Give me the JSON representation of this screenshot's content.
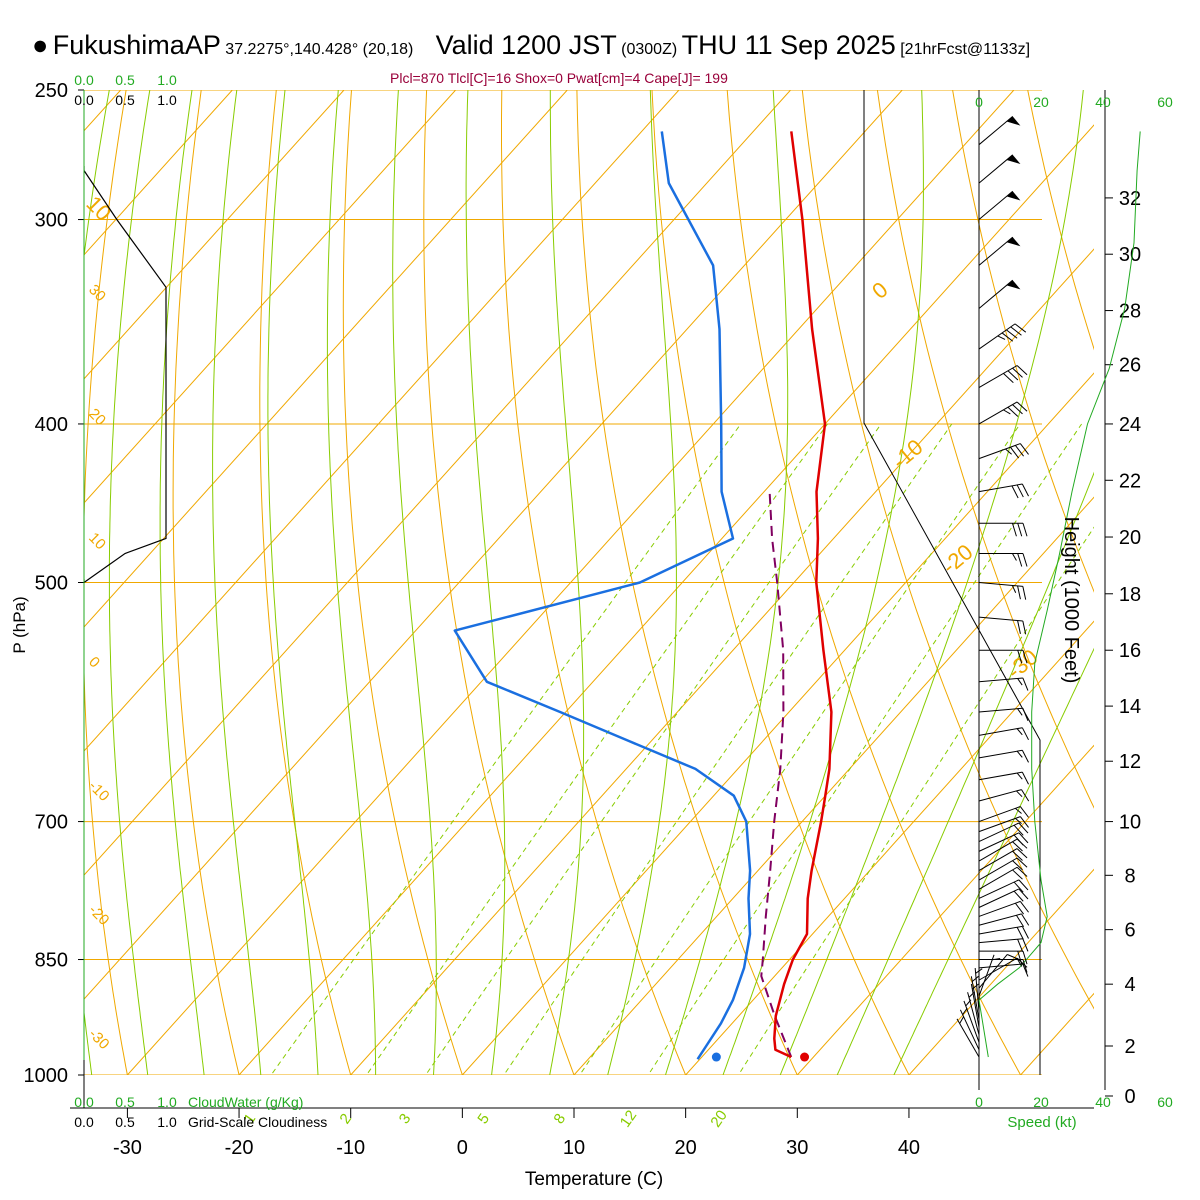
{
  "header": {
    "station": "FukushimaAP",
    "coords": "37.2275°,140.428° (20,18)",
    "valid_text": "Valid 1200 JST",
    "utc_text": "(0300Z)",
    "date_text": "THU 11 Sep 2025",
    "forecast_text": "[21hrFcst@1133z]",
    "params_text": "Plcl=870 Tlcl[C]=16 Shox=0 Pwat[cm]=4 Cape[J]= 199"
  },
  "colors": {
    "temperature": "#e00000",
    "dewpoint": "#1a6fe0",
    "parcel": "#800060",
    "isotherm": "#f0a800",
    "dry_adiabat": "#f0a800",
    "moist_adiabat": "#88cc00",
    "mixing_ratio": "#88cc00",
    "wind_speed": "#22aa22",
    "axis_green": "#22aa22"
  },
  "chart_data": {
    "type": "skew-t",
    "title": "FukushimaAP Valid 1200 JST (0300Z) THU 11 Sep 2025",
    "xlabel": "Temperature (C)",
    "ylabel": "P (hPa)",
    "y2label": "Height (1000 Feet)",
    "pressure_range": [
      1000,
      250
    ],
    "temperature_range_at_1000": [
      -35,
      47
    ],
    "temp_ticks": [
      -30,
      -20,
      -10,
      0,
      10,
      20,
      30,
      40
    ],
    "pressure_ticks": [
      1000,
      850,
      700,
      500,
      400,
      300,
      250
    ],
    "height_ticks": [
      0,
      2,
      4,
      6,
      8,
      10,
      12,
      14,
      16,
      18,
      20,
      22,
      24,
      26,
      28,
      30,
      32
    ],
    "height_pressure_pairs": [
      [
        0,
        1030
      ],
      [
        2,
        960
      ],
      [
        4,
        880
      ],
      [
        6,
        815
      ],
      [
        8,
        755
      ],
      [
        10,
        700
      ],
      [
        12,
        643
      ],
      [
        14,
        595
      ],
      [
        16,
        550
      ],
      [
        18,
        508
      ],
      [
        20,
        469
      ],
      [
        22,
        433
      ],
      [
        24,
        400
      ],
      [
        26,
        368
      ],
      [
        28,
        341
      ],
      [
        30,
        315
      ],
      [
        32,
        291
      ]
    ],
    "isotherm_labels": [
      -30,
      -20,
      -10,
      0,
      10,
      20,
      30
    ],
    "dry_adiabat_labels": [
      10,
      0,
      -10,
      -20,
      -30
    ],
    "mixing_ratio_labels": [
      "1",
      "2",
      "3",
      "5",
      "8",
      "12",
      "20"
    ],
    "mixing_ratio_values": [
      1,
      2,
      3,
      5,
      8,
      12,
      20
    ],
    "temperature_profile": [
      {
        "p": 975,
        "t": 28.0
      },
      {
        "p": 965,
        "t": 26.0
      },
      {
        "p": 950,
        "t": 25.0
      },
      {
        "p": 920,
        "t": 23.3
      },
      {
        "p": 880,
        "t": 21.5
      },
      {
        "p": 860,
        "t": 20.7
      },
      {
        "p": 850,
        "t": 20.3
      },
      {
        "p": 820,
        "t": 19.5
      },
      {
        "p": 780,
        "t": 16.7
      },
      {
        "p": 750,
        "t": 14.8
      },
      {
        "p": 700,
        "t": 11.7
      },
      {
        "p": 675,
        "t": 10.0
      },
      {
        "p": 650,
        "t": 8.2
      },
      {
        "p": 600,
        "t": 3.8
      },
      {
        "p": 550,
        "t": -1.9
      },
      {
        "p": 500,
        "t": -8.0
      },
      {
        "p": 470,
        "t": -11.4
      },
      {
        "p": 440,
        "t": -15.3
      },
      {
        "p": 400,
        "t": -20.0
      },
      {
        "p": 350,
        "t": -28.8
      },
      {
        "p": 300,
        "t": -38.5
      },
      {
        "p": 265,
        "t": -46.6
      }
    ],
    "dewpoint_profile": [
      {
        "p": 978,
        "t": 19.8
      },
      {
        "p": 960,
        "t": 19.5
      },
      {
        "p": 930,
        "t": 19.0
      },
      {
        "p": 900,
        "t": 18.2
      },
      {
        "p": 860,
        "t": 16.6
      },
      {
        "p": 820,
        "t": 14.4
      },
      {
        "p": 780,
        "t": 11.4
      },
      {
        "p": 750,
        "t": 9.3
      },
      {
        "p": 700,
        "t": 5.0
      },
      {
        "p": 675,
        "t": 1.8
      },
      {
        "p": 650,
        "t": -3.8
      },
      {
        "p": 625,
        "t": -12.0
      },
      {
        "p": 600,
        "t": -20.5
      },
      {
        "p": 575,
        "t": -29.5
      },
      {
        "p": 535,
        "t": -36.5
      },
      {
        "p": 500,
        "t": -23.8
      },
      {
        "p": 470,
        "t": -19.0
      },
      {
        "p": 440,
        "t": -23.8
      },
      {
        "p": 400,
        "t": -29.3
      },
      {
        "p": 350,
        "t": -37.1
      },
      {
        "p": 320,
        "t": -42.8
      },
      {
        "p": 285,
        "t": -53.4
      },
      {
        "p": 265,
        "t": -58.2
      }
    ],
    "parcel_profile": [
      {
        "p": 975,
        "t": 28.0
      },
      {
        "p": 920,
        "t": 23.2
      },
      {
        "p": 870,
        "t": 18.8
      },
      {
        "p": 850,
        "t": 17.6
      },
      {
        "p": 800,
        "t": 14.4
      },
      {
        "p": 750,
        "t": 11.1
      },
      {
        "p": 700,
        "t": 7.5
      },
      {
        "p": 650,
        "t": 3.8
      },
      {
        "p": 600,
        "t": -0.5
      },
      {
        "p": 550,
        "t": -5.5
      },
      {
        "p": 500,
        "t": -11.5
      },
      {
        "p": 470,
        "t": -15.5
      },
      {
        "p": 440,
        "t": -19.5
      }
    ],
    "surface_temperature": {
      "p": 975,
      "t": 29.2
    },
    "surface_dewpoint": {
      "p": 975,
      "t": 21.3
    },
    "cloud_axis_ticks": [
      "0.0",
      "0.5",
      "1.0"
    ],
    "cloud_axis_labels": [
      "CloudWater (g/Kg)",
      "Grid-Scale Cloudiness"
    ],
    "cloudiness_profile": [
      {
        "p": 500,
        "c": 0.0
      },
      {
        "p": 480,
        "c": 0.5
      },
      {
        "p": 470,
        "c": 1.0
      },
      {
        "p": 440,
        "c": 1.0
      },
      {
        "p": 400,
        "c": 1.0
      },
      {
        "p": 350,
        "c": 1.0
      },
      {
        "p": 330,
        "c": 1.0
      },
      {
        "p": 300,
        "c": 0.4
      },
      {
        "p": 280,
        "c": 0.0
      }
    ],
    "wind_speed_axis": {
      "ticks": [
        0,
        20,
        40,
        60
      ],
      "label": "Speed (kt)"
    },
    "wind_speed_profile": [
      {
        "p": 975,
        "v": 3
      },
      {
        "p": 900,
        "v": 0
      },
      {
        "p": 880,
        "v": 6
      },
      {
        "p": 860,
        "v": 13
      },
      {
        "p": 830,
        "v": 20
      },
      {
        "p": 800,
        "v": 22
      },
      {
        "p": 760,
        "v": 20
      },
      {
        "p": 700,
        "v": 18
      },
      {
        "p": 650,
        "v": 17
      },
      {
        "p": 600,
        "v": 17
      },
      {
        "p": 560,
        "v": 18
      },
      {
        "p": 520,
        "v": 22
      },
      {
        "p": 480,
        "v": 26
      },
      {
        "p": 440,
        "v": 30
      },
      {
        "p": 400,
        "v": 35
      },
      {
        "p": 370,
        "v": 42
      },
      {
        "p": 340,
        "v": 47
      },
      {
        "p": 310,
        "v": 50
      },
      {
        "p": 280,
        "v": 51
      },
      {
        "p": 265,
        "v": 52
      }
    ],
    "wind_barbs": [
      {
        "p": 975,
        "dir": 150,
        "spd": 5
      },
      {
        "p": 965,
        "dir": 155,
        "spd": 5
      },
      {
        "p": 955,
        "dir": 160,
        "spd": 5
      },
      {
        "p": 945,
        "dir": 165,
        "spd": 5
      },
      {
        "p": 935,
        "dir": 170,
        "spd": 5
      },
      {
        "p": 925,
        "dir": 170,
        "spd": 5
      },
      {
        "p": 915,
        "dir": 175,
        "spd": 5
      },
      {
        "p": 895,
        "dir": 200,
        "spd": 5
      },
      {
        "p": 885,
        "dir": 220,
        "spd": 10
      },
      {
        "p": 875,
        "dir": 240,
        "spd": 10
      },
      {
        "p": 860,
        "dir": 265,
        "spd": 10
      },
      {
        "p": 850,
        "dir": 270,
        "spd": 15
      },
      {
        "p": 840,
        "dir": 270,
        "spd": 20
      },
      {
        "p": 830,
        "dir": 265,
        "spd": 20
      },
      {
        "p": 820,
        "dir": 260,
        "spd": 20
      },
      {
        "p": 810,
        "dir": 255,
        "spd": 20
      },
      {
        "p": 800,
        "dir": 250,
        "spd": 20
      },
      {
        "p": 790,
        "dir": 245,
        "spd": 20
      },
      {
        "p": 780,
        "dir": 245,
        "spd": 20
      },
      {
        "p": 770,
        "dir": 240,
        "spd": 20
      },
      {
        "p": 760,
        "dir": 240,
        "spd": 20
      },
      {
        "p": 750,
        "dir": 240,
        "spd": 20
      },
      {
        "p": 740,
        "dir": 240,
        "spd": 20
      },
      {
        "p": 730,
        "dir": 245,
        "spd": 20
      },
      {
        "p": 720,
        "dir": 245,
        "spd": 20
      },
      {
        "p": 710,
        "dir": 250,
        "spd": 15
      },
      {
        "p": 700,
        "dir": 250,
        "spd": 15
      },
      {
        "p": 680,
        "dir": 255,
        "spd": 15
      },
      {
        "p": 660,
        "dir": 260,
        "spd": 15
      },
      {
        "p": 640,
        "dir": 260,
        "spd": 15
      },
      {
        "p": 620,
        "dir": 260,
        "spd": 15
      },
      {
        "p": 600,
        "dir": 265,
        "spd": 15
      },
      {
        "p": 575,
        "dir": 265,
        "spd": 15
      },
      {
        "p": 550,
        "dir": 270,
        "spd": 20
      },
      {
        "p": 525,
        "dir": 275,
        "spd": 20
      },
      {
        "p": 500,
        "dir": 275,
        "spd": 25
      },
      {
        "p": 480,
        "dir": 270,
        "spd": 25
      },
      {
        "p": 460,
        "dir": 270,
        "spd": 30
      },
      {
        "p": 440,
        "dir": 260,
        "spd": 30
      },
      {
        "p": 420,
        "dir": 250,
        "spd": 35
      },
      {
        "p": 400,
        "dir": 240,
        "spd": 35
      },
      {
        "p": 380,
        "dir": 240,
        "spd": 40
      },
      {
        "p": 360,
        "dir": 235,
        "spd": 45
      },
      {
        "p": 340,
        "dir": 230,
        "spd": 50
      },
      {
        "p": 320,
        "dir": 230,
        "spd": 50
      },
      {
        "p": 300,
        "dir": 230,
        "spd": 50
      },
      {
        "p": 285,
        "dir": 230,
        "spd": 50
      },
      {
        "p": 270,
        "dir": 230,
        "spd": 50
      }
    ]
  }
}
